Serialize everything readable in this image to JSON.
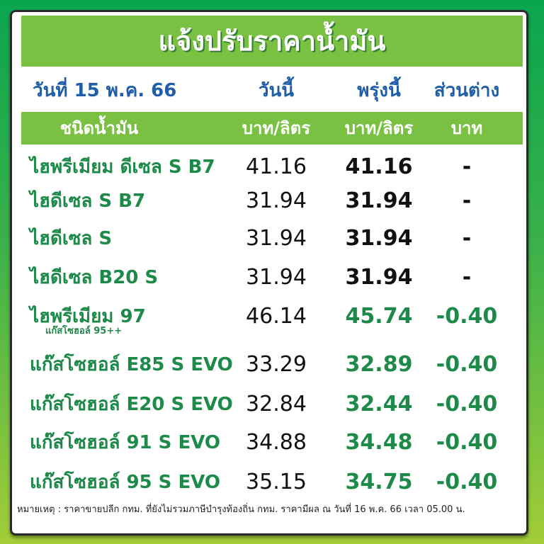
{
  "title": "แจ้งปรับราคาน้ำมัน",
  "header": {
    "date": "วันที่ 15 พ.ค. 66",
    "today": "วันนี้",
    "tomorrow": "พรุ่งนี้",
    "diff": "ส่วนต่าง"
  },
  "subheader": {
    "type": "ชนิดน้ำมัน",
    "today_unit": "บาท/ลิตร",
    "tomorrow_unit": "บาท/ลิตร",
    "diff_unit": "บาท"
  },
  "colors": {
    "unchanged": "#111111",
    "decreased": "#1e8a4a",
    "accent": "#79c043",
    "header_text": "#1f5ea8"
  },
  "rows": [
    {
      "name": "ไฮพรีเมียม ดีเซล S B7",
      "today": "41.16",
      "tomorrow": "41.16",
      "diff": "-",
      "changed": false
    },
    {
      "name": "ไฮดีเซล S B7",
      "today": "31.94",
      "tomorrow": "31.94",
      "diff": "-",
      "changed": false
    },
    {
      "name": "ไฮดีเซล S",
      "today": "31.94",
      "tomorrow": "31.94",
      "diff": "-",
      "changed": false
    },
    {
      "name": "ไฮดีเซล B20 S",
      "today": "31.94",
      "tomorrow": "31.94",
      "diff": "-",
      "changed": false
    },
    {
      "name": "ไฮพรีเมียม 97",
      "sublabel": "แก๊สโซฮอล์ 95++",
      "today": "46.14",
      "tomorrow": "45.74",
      "diff": "-0.40",
      "changed": true
    },
    {
      "name": "แก๊สโซฮอล์ E85 S EVO",
      "today": "33.29",
      "tomorrow": "32.89",
      "diff": "-0.40",
      "changed": true
    },
    {
      "name": "แก๊สโซฮอล์ E20 S EVO",
      "today": "32.84",
      "tomorrow": "32.44",
      "diff": "-0.40",
      "changed": true
    },
    {
      "name": "แก๊สโซฮอล์ 91 S EVO",
      "today": "34.88",
      "tomorrow": "34.48",
      "diff": "-0.40",
      "changed": true
    },
    {
      "name": "แก๊สโซฮอล์ 95 S EVO",
      "today": "35.15",
      "tomorrow": "34.75",
      "diff": "-0.40",
      "changed": true
    }
  ],
  "footnote": "หมายเหตุ :  ราคาขายปลีก กทม. ที่ยังไม่รวมภาษีบำรุงท้องถิ่น กทม.  ราคามีผล ณ วันที่ 16 พ.ค. 66 เวลา 05.00 น."
}
